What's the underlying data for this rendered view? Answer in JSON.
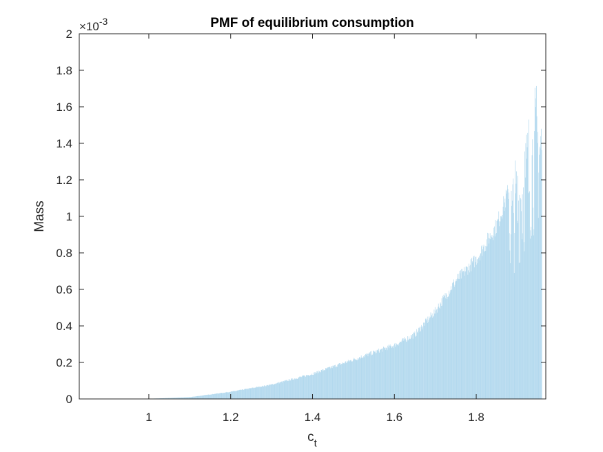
{
  "chart_data": {
    "type": "bar",
    "title": "PMF of equilibrium consumption",
    "xlabel": {
      "base": "c",
      "sub": "t"
    },
    "ylabel": "Mass",
    "y_exponent": {
      "base": "×10",
      "power": "-3"
    },
    "xlim": [
      0.83,
      1.97
    ],
    "ylim": [
      0,
      0.002
    ],
    "x_ticks": [
      1,
      1.2,
      1.4,
      1.6,
      1.8
    ],
    "x_tick_labels": [
      "1",
      "1.2",
      "1.4",
      "1.6",
      "1.8"
    ],
    "y_ticks": [
      0,
      0.0002,
      0.0004,
      0.0006,
      0.0008,
      0.001,
      0.0012,
      0.0014,
      0.0016,
      0.0018,
      0.002
    ],
    "y_tick_labels": [
      "0",
      "0.2",
      "0.4",
      "0.6",
      "0.8",
      "1",
      "1.2",
      "1.4",
      "1.6",
      "1.8",
      "2"
    ],
    "bar_color": "#b3d9ee",
    "grid": false,
    "profile": {
      "x": [
        0.9,
        1.0,
        1.1,
        1.2,
        1.3,
        1.4,
        1.5,
        1.6,
        1.65,
        1.7,
        1.75,
        1.8,
        1.85,
        1.9,
        1.95
      ],
      "y": [
        0,
        1e-06,
        1e-05,
        4e-05,
        8e-05,
        0.00014,
        0.00022,
        0.0003,
        0.00036,
        0.00049,
        0.00066,
        0.00078,
        0.00097,
        0.0013,
        0.0017
      ]
    }
  }
}
